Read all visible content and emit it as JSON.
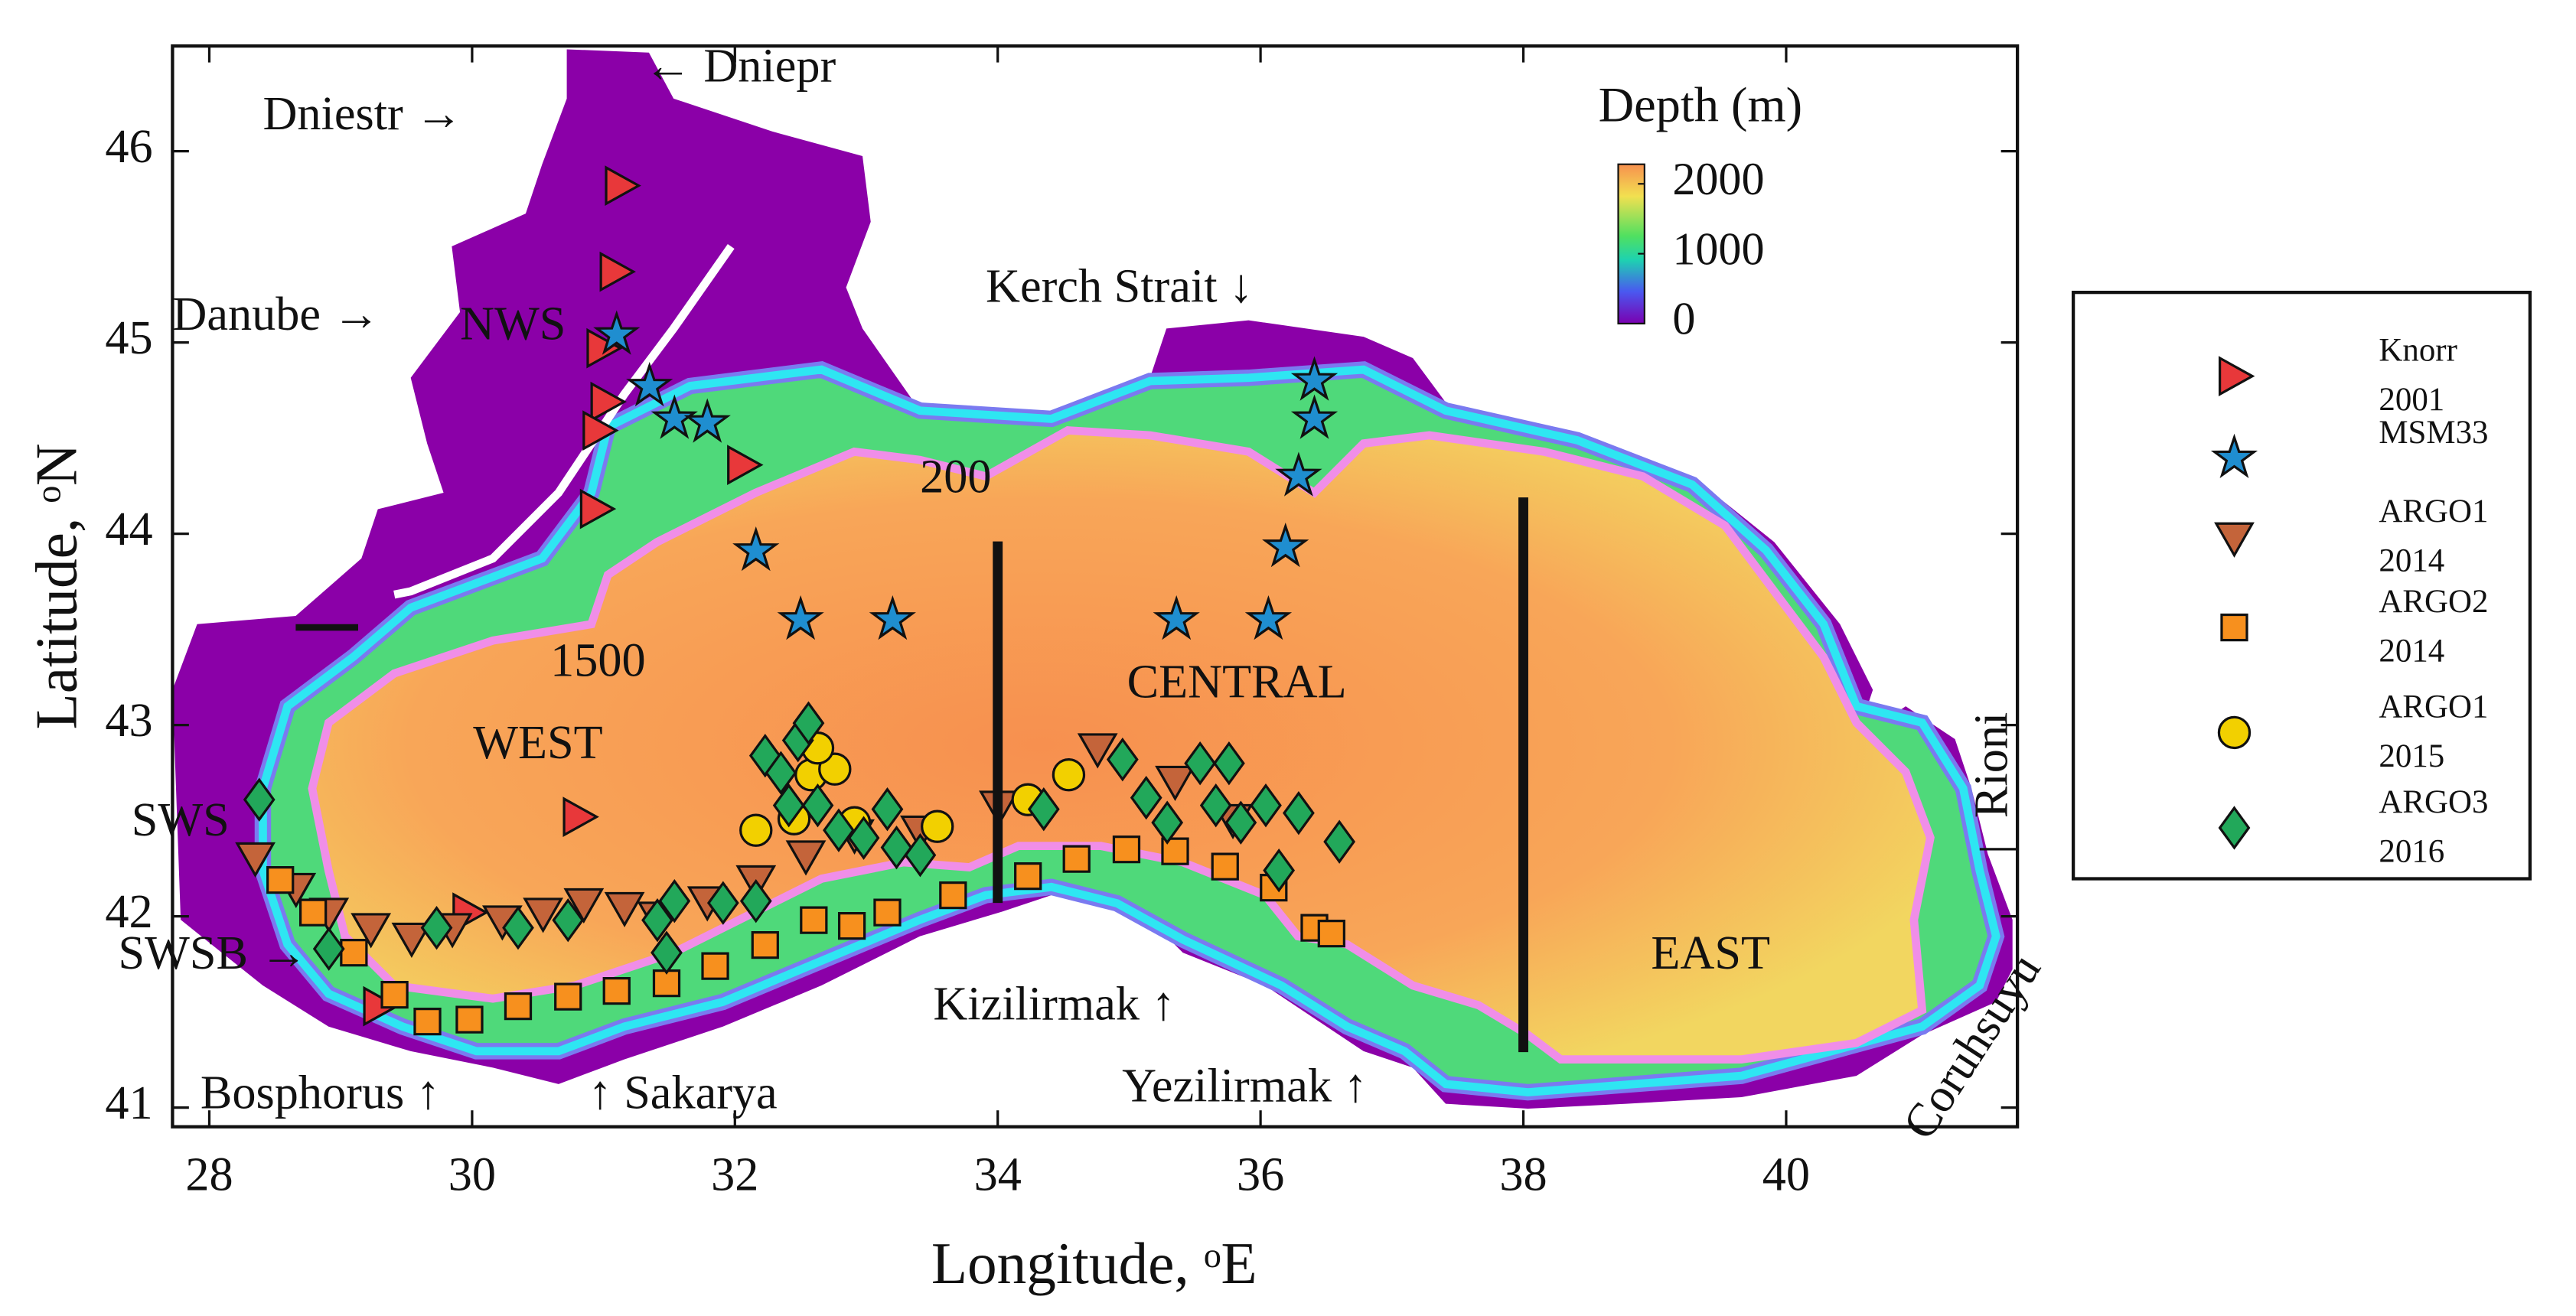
{
  "chart_data": {
    "type": "scatter",
    "x_label": "Longitude, ᵒE",
    "y_label": "Latitude, ᵒN",
    "xlim": [
      27.72,
      41.76
    ],
    "ylim": [
      40.9,
      46.55
    ],
    "xticks": [
      28,
      30,
      32,
      34,
      36,
      38,
      40
    ],
    "yticks": [
      41,
      42,
      43,
      44,
      45,
      46
    ],
    "grid": false,
    "legend_position": "outside-right",
    "colorbar": {
      "title": "Depth (m)",
      "lim": [
        0,
        2280
      ],
      "ticks": [
        0,
        1000,
        2000
      ]
    },
    "boundaries": [
      {
        "lon": 34,
        "lat": [
          42.07,
          43.96
        ]
      },
      {
        "lon": 38,
        "lat": [
          41.29,
          44.19
        ]
      }
    ],
    "annotations": [
      "← Dniepr",
      "Dniestr →",
      "Danube →",
      "NWS",
      "Kerch Strait ↓",
      "200",
      "1500",
      "WEST",
      "CENTRAL",
      "EAST",
      "SWS",
      "SWSB →",
      "Bosphorus ↑",
      "↑ Sakarya",
      "Kizilirmak ↑",
      "Yezilirmak ↑",
      "Rioni",
      "Coruhsuyu"
    ],
    "series": [
      {
        "name": "Knorr 2001",
        "marker": "triangle-right",
        "color": "#e8383a",
        "x": [
          31.13,
          31.09,
          30.99,
          31.02,
          30.96,
          30.94,
          32.06,
          30.81,
          29.97,
          29.29
        ],
        "y": [
          45.82,
          45.37,
          44.97,
          44.69,
          44.54,
          44.13,
          44.36,
          42.52,
          42.02,
          41.53
        ]
      },
      {
        "name": "MSM33",
        "marker": "star",
        "color": "#1f8ed0",
        "x": [
          31.1,
          31.35,
          31.54,
          31.79,
          32.16,
          32.5,
          33.2,
          35.36,
          36.06,
          36.19,
          36.29,
          36.41,
          36.41
        ],
        "y": [
          45.04,
          44.77,
          44.6,
          44.58,
          43.91,
          43.55,
          43.55,
          43.55,
          43.55,
          43.93,
          44.3,
          44.6,
          44.8
        ]
      },
      {
        "name": "ARGO1 2014",
        "marker": "triangle-down",
        "color": "#c4643a",
        "x": [
          28.35,
          28.66,
          28.91,
          29.23,
          29.54,
          29.85,
          30.23,
          30.54,
          30.85,
          31.16,
          31.41,
          31.79,
          32.16,
          32.54,
          32.91,
          33.41,
          34.01,
          34.76,
          35.35,
          35.79
        ],
        "y": [
          42.31,
          42.15,
          42.02,
          41.94,
          41.89,
          41.94,
          41.98,
          42.02,
          42.07,
          42.05,
          42.0,
          42.08,
          42.19,
          42.32,
          42.43,
          42.45,
          42.58,
          42.88,
          42.71,
          42.51
        ]
      },
      {
        "name": "ARGO2 2014",
        "marker": "square",
        "color": "#f7901e",
        "x": [
          28.54,
          28.79,
          29.1,
          29.41,
          29.66,
          29.98,
          30.35,
          30.73,
          31.1,
          31.48,
          31.85,
          32.23,
          32.6,
          32.89,
          33.16,
          33.66,
          34.23,
          34.6,
          34.98,
          35.35,
          35.73,
          36.1,
          36.41,
          36.54
        ],
        "y": [
          42.19,
          42.02,
          41.81,
          41.59,
          41.45,
          41.46,
          41.53,
          41.58,
          41.61,
          41.65,
          41.74,
          41.85,
          41.98,
          41.95,
          42.02,
          42.11,
          42.21,
          42.3,
          42.35,
          42.34,
          42.26,
          42.15,
          41.94,
          41.91
        ]
      },
      {
        "name": "ARGO1 2015",
        "marker": "circle",
        "color": "#f2d000",
        "x": [
          32.16,
          32.45,
          32.58,
          32.76,
          32.63,
          32.91,
          33.54,
          34.23,
          34.54
        ],
        "y": [
          42.45,
          42.51,
          42.74,
          42.77,
          42.88,
          42.49,
          42.47,
          42.61,
          42.74
        ]
      },
      {
        "name": "ARGO3 2016",
        "marker": "diamond",
        "color": "#22a85a",
        "x": [
          28.38,
          28.91,
          29.73,
          30.35,
          30.73,
          31.41,
          31.54,
          31.91,
          32.16,
          32.23,
          32.35,
          32.48,
          32.56,
          32.41,
          32.63,
          32.79,
          32.98,
          33.16,
          33.23,
          33.41,
          34.35,
          34.95,
          35.13,
          35.29,
          35.54,
          35.76,
          35.66,
          35.85,
          36.04,
          36.29,
          36.14,
          36.6,
          31.48
        ],
        "y": [
          42.61,
          41.83,
          41.94,
          41.94,
          41.98,
          41.98,
          42.08,
          42.07,
          42.08,
          42.84,
          42.75,
          42.92,
          43.01,
          42.58,
          42.58,
          42.45,
          42.41,
          42.56,
          42.36,
          42.32,
          42.56,
          42.82,
          42.62,
          42.49,
          42.8,
          42.8,
          42.58,
          42.49,
          42.58,
          42.54,
          42.24,
          42.39,
          41.81
        ]
      }
    ]
  }
}
